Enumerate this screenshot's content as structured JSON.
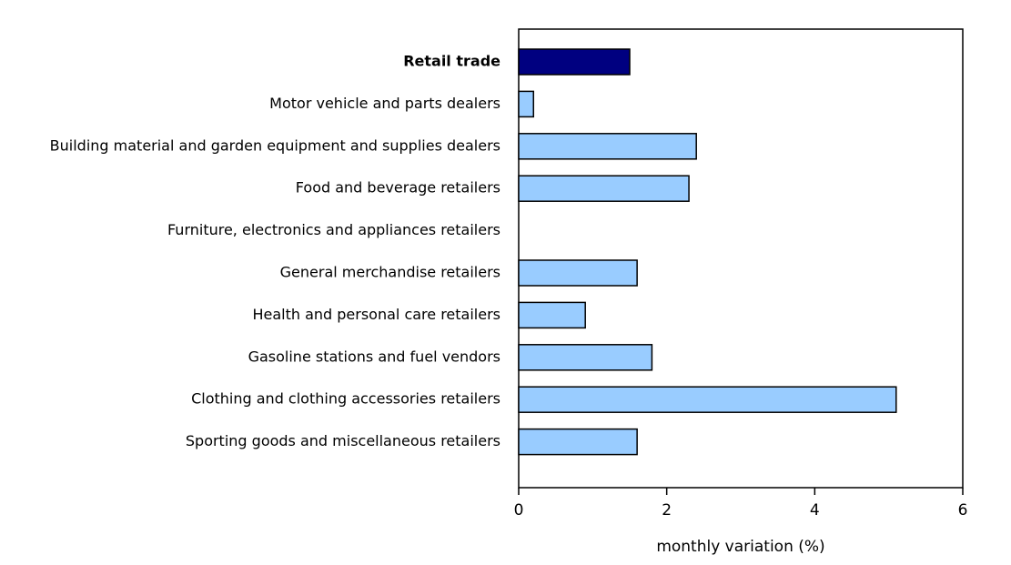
{
  "chart_data": {
    "type": "hbar",
    "categories": [
      "Retail trade",
      "Motor vehicle and parts dealers",
      "Building material and garden equipment and supplies dealers",
      "Food and beverage retailers",
      "Furniture, electronics and appliances retailers",
      "General merchandise retailers",
      "Health and personal care retailers",
      "Gasoline stations and fuel vendors",
      "Clothing and clothing accessories retailers",
      "Sporting goods and miscellaneous retailers"
    ],
    "values": [
      1.5,
      0.2,
      2.4,
      2.3,
      0,
      1.6,
      0.9,
      1.8,
      5.1,
      1.6
    ],
    "colors": [
      "#000080",
      "#99ccff",
      "#99ccff",
      "#99ccff",
      "#99ccff",
      "#99ccff",
      "#99ccff",
      "#99ccff",
      "#99ccff",
      "#99ccff"
    ],
    "xlabel": "monthly variation (%)",
    "xlim": [
      0,
      6
    ],
    "xticks": [
      0,
      2,
      4,
      6
    ],
    "grid": false
  }
}
